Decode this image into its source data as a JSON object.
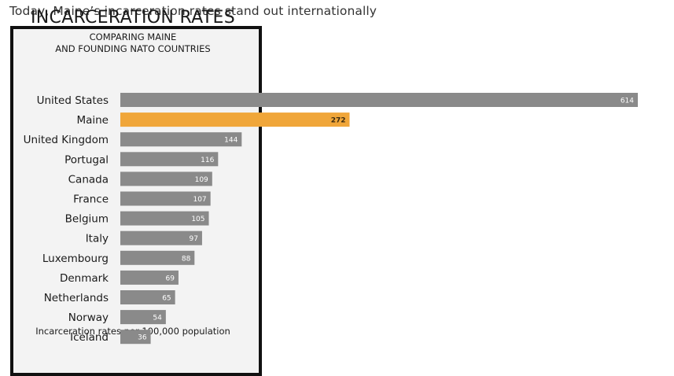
{
  "headline": "Today, Maine’s incarceration rates stand out internationally",
  "chart_data": {
    "type": "bar",
    "orientation": "horizontal",
    "title": "INCARCERATION RATES",
    "subtitle": "COMPARING MAINE\nAND FOUNDING NATO COUNTRIES",
    "footnote": "Incarceration rates per 100,000 population",
    "categories": [
      "United States",
      "Maine",
      "United Kingdom",
      "Portugal",
      "Canada",
      "France",
      "Belgium",
      "Italy",
      "Luxembourg",
      "Denmark",
      "Netherlands",
      "Norway",
      "Iceland"
    ],
    "values": [
      614,
      272,
      144,
      116,
      109,
      107,
      105,
      97,
      88,
      69,
      65,
      54,
      36
    ],
    "highlight": "Maine",
    "colors": {
      "bar": "#8a8a8a",
      "highlight": "#f0a63a",
      "panel_border": "#111111",
      "panel_bg": "#f3f3f3"
    },
    "grid": false,
    "legend": "none"
  }
}
